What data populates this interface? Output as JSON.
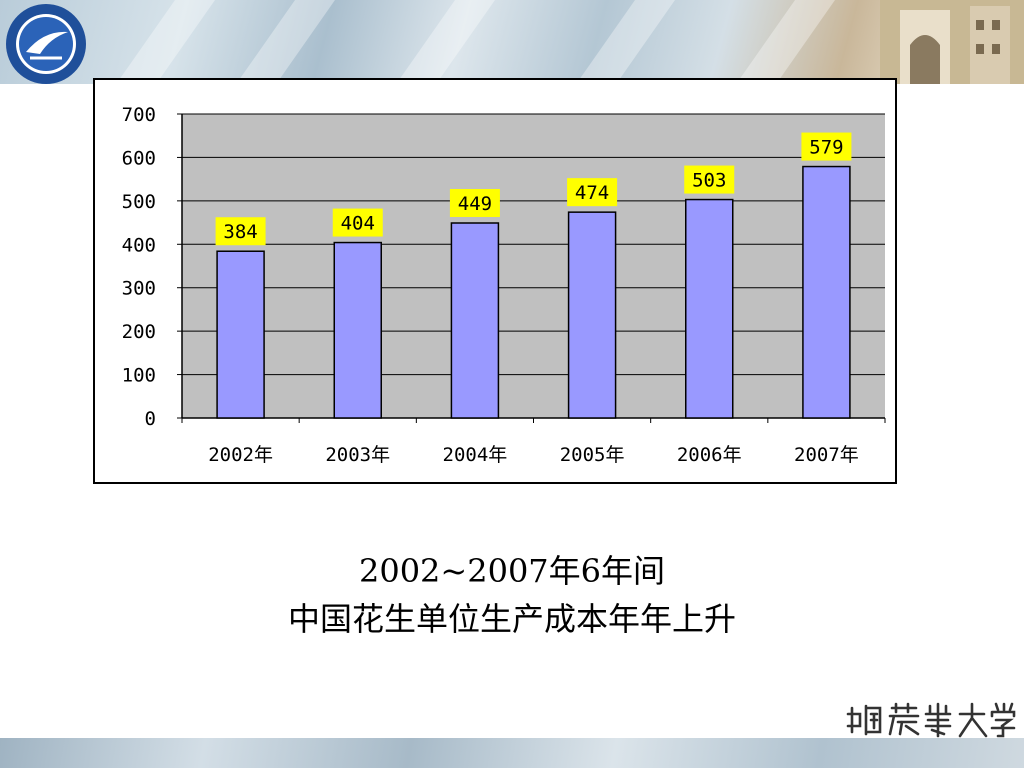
{
  "caption": {
    "line1": "2002~2007年6年间",
    "line2": "中国花生单位生产成本年年上升"
  },
  "signature_text": "中国农业大学",
  "colors": {
    "bar_fill": "#9999ff",
    "plot_bg": "#c0c0c0",
    "label_bg": "#ffff00",
    "axis": "#000000"
  },
  "chart_data": {
    "type": "bar",
    "title": "",
    "xlabel": "",
    "ylabel": "",
    "categories": [
      "2002年",
      "2003年",
      "2004年",
      "2005年",
      "2006年",
      "2007年"
    ],
    "values": [
      384,
      404,
      449,
      474,
      503,
      579
    ],
    "data_labels": [
      "384",
      "404",
      "449",
      "474",
      "503",
      "579"
    ],
    "ylim": [
      0,
      700
    ],
    "yticks": [
      0,
      100,
      200,
      300,
      400,
      500,
      600,
      700
    ],
    "ytick_labels": [
      "0",
      "100",
      "200",
      "300",
      "400",
      "500",
      "600",
      "700"
    ],
    "grid": "horizontal",
    "legend": "none"
  }
}
